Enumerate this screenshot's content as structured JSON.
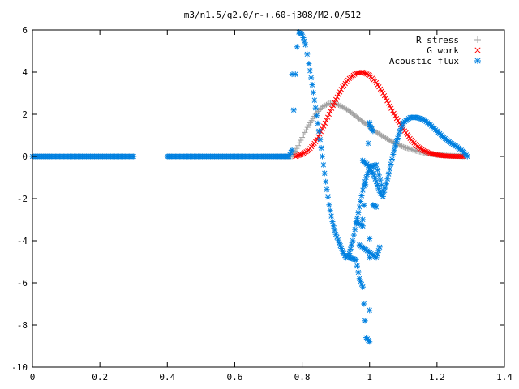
{
  "chart_data": {
    "type": "scatter",
    "title": "m3/n1.5/q2.0/r-+.60-j308/M2.0/512",
    "xlabel": "",
    "ylabel": "",
    "xlim": [
      0,
      1.4
    ],
    "ylim": [
      -10,
      6
    ],
    "x_ticks": [
      "0",
      "0.2",
      "0.4",
      "0.6",
      "0.8",
      "1",
      "1.2",
      "1.4"
    ],
    "y_ticks": [
      "-10",
      "-8",
      "-6",
      "-4",
      "-2",
      "0",
      "2",
      "4",
      "6"
    ],
    "legend_position": "top-right",
    "grid": false,
    "series": [
      {
        "name": "R stress",
        "marker": "plus",
        "color": "#a0a0a0",
        "points": [
          [
            0.0,
            0.0
          ],
          [
            0.1,
            0.0
          ],
          [
            0.2,
            0.0
          ],
          [
            0.3,
            0.0
          ],
          [
            0.4,
            0.0
          ],
          [
            0.5,
            0.0
          ],
          [
            0.6,
            0.0
          ],
          [
            0.7,
            0.0
          ],
          [
            0.77,
            0.0
          ],
          [
            0.78,
            0.25
          ],
          [
            0.8,
            0.9
          ],
          [
            0.82,
            1.5
          ],
          [
            0.84,
            2.0
          ],
          [
            0.86,
            2.35
          ],
          [
            0.88,
            2.52
          ],
          [
            0.9,
            2.5
          ],
          [
            0.92,
            2.35
          ],
          [
            0.94,
            2.15
          ],
          [
            0.96,
            1.9
          ],
          [
            0.98,
            1.65
          ],
          [
            1.0,
            1.4
          ],
          [
            1.02,
            1.15
          ],
          [
            1.04,
            0.95
          ],
          [
            1.06,
            0.75
          ],
          [
            1.08,
            0.6
          ],
          [
            1.1,
            0.45
          ],
          [
            1.12,
            0.35
          ],
          [
            1.14,
            0.25
          ],
          [
            1.16,
            0.18
          ],
          [
            1.18,
            0.12
          ],
          [
            1.2,
            0.08
          ],
          [
            1.22,
            0.05
          ],
          [
            1.24,
            0.03
          ],
          [
            1.26,
            0.02
          ],
          [
            1.28,
            0.0
          ]
        ]
      },
      {
        "name": "G work",
        "marker": "cross",
        "color": "#ff0000",
        "points": [
          [
            0.78,
            0.0
          ],
          [
            0.8,
            0.1
          ],
          [
            0.82,
            0.3
          ],
          [
            0.84,
            0.7
          ],
          [
            0.86,
            1.3
          ],
          [
            0.88,
            2.0
          ],
          [
            0.9,
            2.7
          ],
          [
            0.92,
            3.3
          ],
          [
            0.94,
            3.7
          ],
          [
            0.96,
            3.95
          ],
          [
            0.98,
            4.0
          ],
          [
            1.0,
            3.85
          ],
          [
            1.02,
            3.5
          ],
          [
            1.04,
            3.0
          ],
          [
            1.06,
            2.4
          ],
          [
            1.08,
            1.8
          ],
          [
            1.1,
            1.3
          ],
          [
            1.12,
            0.85
          ],
          [
            1.14,
            0.5
          ],
          [
            1.16,
            0.28
          ],
          [
            1.18,
            0.15
          ],
          [
            1.2,
            0.07
          ],
          [
            1.22,
            0.03
          ],
          [
            1.24,
            0.01
          ],
          [
            1.26,
            0.0
          ],
          [
            1.28,
            0.0
          ]
        ]
      },
      {
        "name": "Acoustic flux",
        "marker": "star",
        "color": "#0080e0",
        "points": [
          [
            0.0,
            0.0
          ],
          [
            0.1,
            0.0
          ],
          [
            0.2,
            0.0
          ],
          [
            0.3,
            0.0
          ],
          [
            0.4,
            0.0
          ],
          [
            0.5,
            0.0
          ],
          [
            0.6,
            0.0
          ],
          [
            0.7,
            0.0
          ],
          [
            0.76,
            0.0
          ],
          [
            0.77,
            0.3
          ],
          [
            0.775,
            2.2
          ],
          [
            0.78,
            3.9
          ],
          [
            0.785,
            5.2
          ],
          [
            0.79,
            5.9
          ],
          [
            0.8,
            5.8
          ],
          [
            0.81,
            5.3
          ],
          [
            0.82,
            4.4
          ],
          [
            0.83,
            3.4
          ],
          [
            0.84,
            2.3
          ],
          [
            0.85,
            1.2
          ],
          [
            0.86,
            0.0
          ],
          [
            0.87,
            -1.2
          ],
          [
            0.88,
            -2.3
          ],
          [
            0.89,
            -3.1
          ],
          [
            0.9,
            -3.7
          ],
          [
            0.91,
            -4.1
          ],
          [
            0.92,
            -4.5
          ],
          [
            0.93,
            -4.8
          ],
          [
            0.94,
            -4.6
          ],
          [
            0.95,
            -4.0
          ],
          [
            0.96,
            -3.2
          ],
          [
            0.97,
            -2.4
          ],
          [
            0.98,
            -1.6
          ],
          [
            0.99,
            -1.0
          ],
          [
            1.0,
            -0.6
          ],
          [
            1.01,
            -0.8
          ],
          [
            1.02,
            -1.2
          ],
          [
            1.03,
            -1.7
          ],
          [
            1.04,
            -1.9
          ],
          [
            1.05,
            -1.3
          ],
          [
            1.06,
            -0.6
          ],
          [
            1.07,
            0.1
          ],
          [
            1.08,
            0.7
          ],
          [
            1.09,
            1.2
          ],
          [
            1.1,
            1.6
          ],
          [
            1.12,
            1.85
          ],
          [
            1.14,
            1.85
          ],
          [
            1.16,
            1.75
          ],
          [
            1.18,
            1.5
          ],
          [
            1.2,
            1.2
          ],
          [
            1.22,
            0.9
          ],
          [
            1.24,
            0.65
          ],
          [
            1.26,
            0.45
          ],
          [
            1.28,
            0.2
          ],
          [
            1.29,
            0.0
          ],
          [
            0.77,
            3.9
          ],
          [
            0.94,
            -4.8
          ],
          [
            0.96,
            -4.9
          ],
          [
            0.97,
            -5.8
          ],
          [
            0.98,
            -6.2
          ],
          [
            0.99,
            -8.6
          ],
          [
            1.0,
            -8.8
          ],
          [
            1.0,
            -7.3
          ],
          [
            0.96,
            -3.1
          ],
          [
            0.98,
            -3.3
          ],
          [
            1.0,
            1.6
          ],
          [
            1.0,
            1.5
          ],
          [
            1.01,
            1.2
          ],
          [
            0.98,
            -0.2
          ],
          [
            1.0,
            -0.5
          ],
          [
            1.02,
            -0.4
          ],
          [
            1.04,
            -1.6
          ],
          [
            1.01,
            -2.3
          ],
          [
            1.02,
            -2.4
          ],
          [
            1.0,
            -3.9
          ],
          [
            0.97,
            -4.2
          ],
          [
            1.02,
            -4.8
          ],
          [
            1.03,
            -4.3
          ],
          [
            1.0,
            -4.8
          ],
          [
            0.98,
            -3.0
          ]
        ]
      }
    ]
  }
}
